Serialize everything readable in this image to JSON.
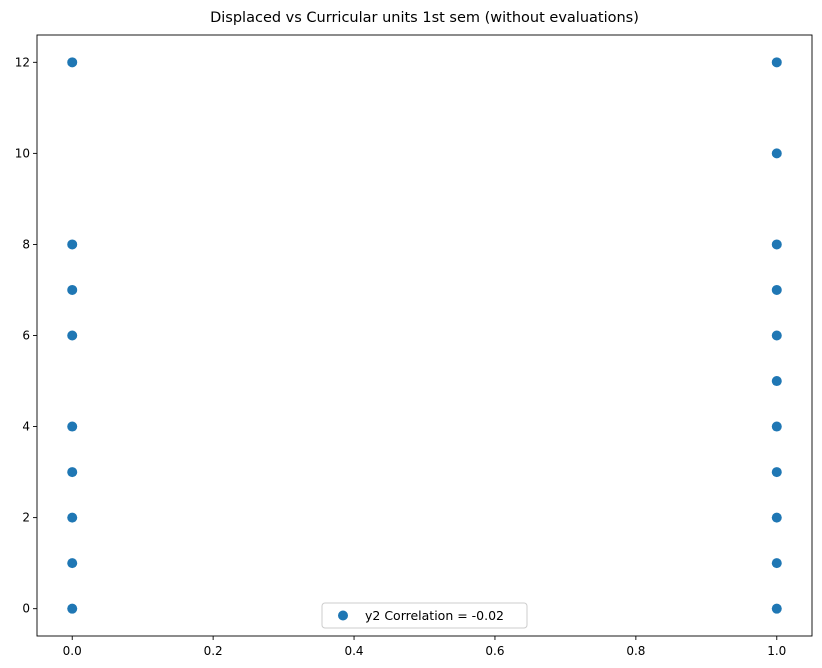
{
  "chart_data": {
    "type": "scatter",
    "title": "Displaced vs Curricular units 1st sem (without evaluations)",
    "xlabel": "",
    "ylabel": "",
    "xlim": [
      -0.05,
      1.05
    ],
    "ylim": [
      -0.6,
      12.6
    ],
    "x_ticks": [
      0.0,
      0.2,
      0.4,
      0.6,
      0.8,
      1.0
    ],
    "x_tick_labels": [
      "0.0",
      "0.2",
      "0.4",
      "0.6",
      "0.8",
      "1.0"
    ],
    "y_ticks": [
      0,
      2,
      4,
      6,
      8,
      10,
      12
    ],
    "y_tick_labels": [
      "0",
      "2",
      "4",
      "6",
      "8",
      "10",
      "12"
    ],
    "grid": false,
    "legend_position": "lower center",
    "series": [
      {
        "name": "y2 Correlation = -0.02",
        "color": "#1f77b4",
        "points": [
          {
            "x": 0,
            "y": 0
          },
          {
            "x": 0,
            "y": 1
          },
          {
            "x": 0,
            "y": 2
          },
          {
            "x": 0,
            "y": 3
          },
          {
            "x": 0,
            "y": 4
          },
          {
            "x": 0,
            "y": 6
          },
          {
            "x": 0,
            "y": 7
          },
          {
            "x": 0,
            "y": 8
          },
          {
            "x": 0,
            "y": 12
          },
          {
            "x": 1,
            "y": 0
          },
          {
            "x": 1,
            "y": 1
          },
          {
            "x": 1,
            "y": 2
          },
          {
            "x": 1,
            "y": 3
          },
          {
            "x": 1,
            "y": 4
          },
          {
            "x": 1,
            "y": 5
          },
          {
            "x": 1,
            "y": 6
          },
          {
            "x": 1,
            "y": 7
          },
          {
            "x": 1,
            "y": 8
          },
          {
            "x": 1,
            "y": 10
          },
          {
            "x": 1,
            "y": 12
          }
        ]
      }
    ]
  }
}
